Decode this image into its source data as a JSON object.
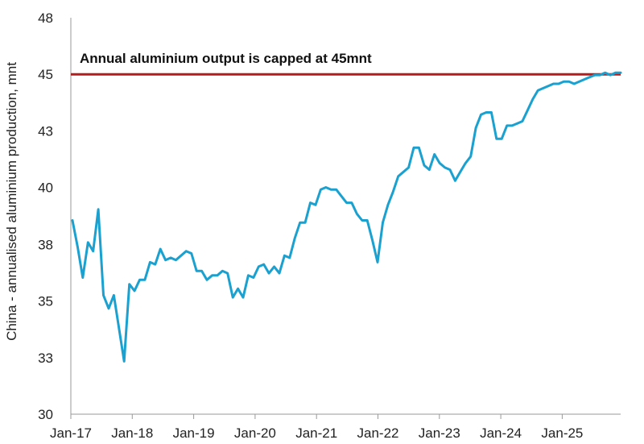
{
  "chart_data": {
    "type": "line",
    "ylabel": "China - annualised aluminium production, mnt",
    "xlabel": "",
    "ylim": [
      30,
      48
    ],
    "y_ticks": [
      {
        "value": 30,
        "label": "30"
      },
      {
        "value": 32.57,
        "label": "33"
      },
      {
        "value": 35.14,
        "label": "35"
      },
      {
        "value": 37.71,
        "label": "38"
      },
      {
        "value": 40.29,
        "label": "40"
      },
      {
        "value": 42.86,
        "label": "43"
      },
      {
        "value": 45.43,
        "label": "45"
      },
      {
        "value": 48,
        "label": "48"
      }
    ],
    "x_ticks": [
      "Jan-17",
      "Jan-18",
      "Jan-19",
      "Jan-20",
      "Jan-21",
      "Jan-22",
      "Jan-23",
      "Jan-24",
      "Jan-25"
    ],
    "grid": false,
    "annotation": "Annual aluminium output is capped at 45mnt",
    "cap_value": 45.43,
    "colors": {
      "series": "#1ba1d0",
      "cap": "#b71c1c",
      "axis": "#999999"
    },
    "series": [
      {
        "values": [
          38.8,
          37.6,
          36.2,
          37.8,
          37.4,
          39.3,
          35.4,
          34.8,
          35.4,
          33.9,
          32.4,
          35.9,
          35.6,
          36.1,
          36.1,
          36.9,
          36.8,
          37.5,
          37.0,
          37.1,
          37.0,
          37.2,
          37.4,
          37.3,
          36.5,
          36.5,
          36.1,
          36.3,
          36.3,
          36.5,
          36.4,
          35.3,
          35.7,
          35.3,
          36.3,
          36.2,
          36.7,
          36.8,
          36.4,
          36.7,
          36.4,
          37.2,
          37.1,
          38.0,
          38.7,
          38.7,
          39.6,
          39.5,
          40.2,
          40.3,
          40.2,
          40.2,
          39.9,
          39.6,
          39.6,
          39.1,
          38.8,
          38.8,
          37.9,
          36.9,
          38.7,
          39.5,
          40.1,
          40.8,
          41.0,
          41.2,
          42.1,
          42.1,
          41.3,
          41.1,
          41.8,
          41.4,
          41.2,
          41.1,
          40.6,
          41.0,
          41.4,
          41.7,
          43.0,
          43.6,
          43.7,
          43.7,
          42.5,
          42.5,
          43.1,
          43.1,
          43.2,
          43.3,
          43.8,
          44.3,
          44.7,
          44.8,
          44.9,
          45.0,
          45.0,
          45.1,
          45.1,
          45.0,
          45.1,
          45.2,
          45.3,
          45.4,
          45.4,
          45.5,
          45.4,
          45.5,
          45.5
        ]
      }
    ]
  }
}
